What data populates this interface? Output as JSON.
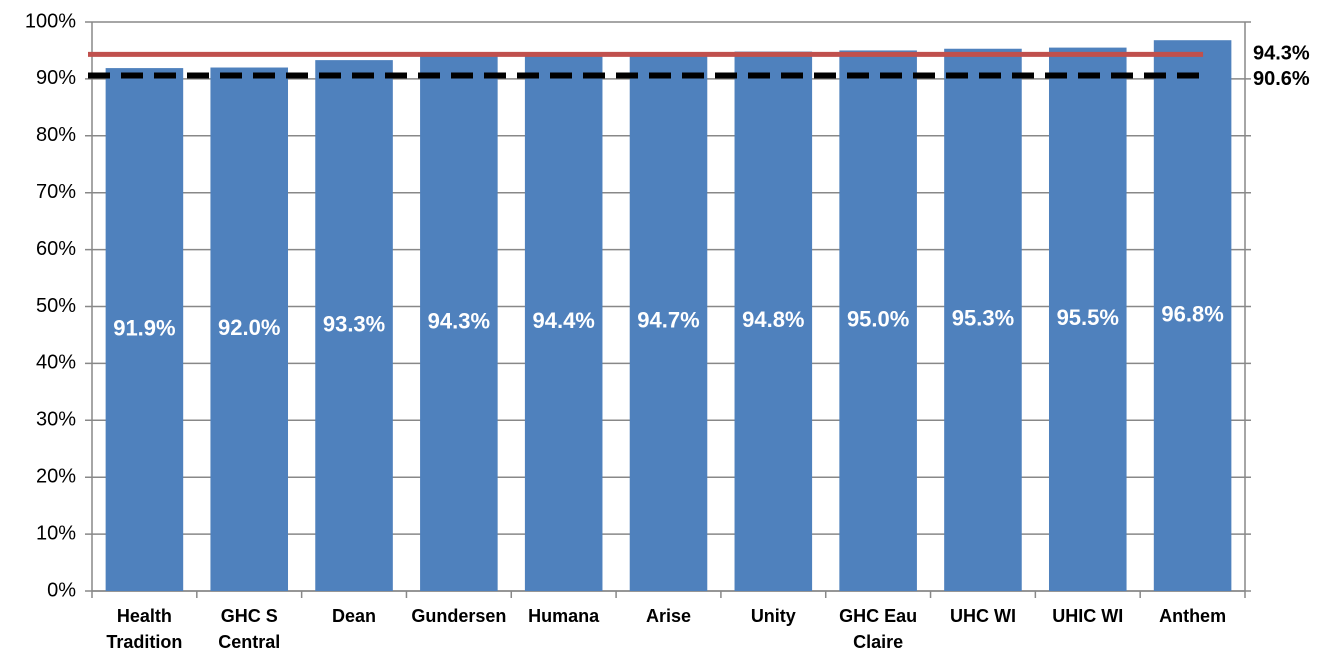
{
  "chart_data": {
    "type": "bar",
    "categories": [
      "Health\nTradition",
      "GHC S\nCentral",
      "Dean",
      "Gundersen",
      "Humana",
      "Arise",
      "Unity",
      "GHC Eau\nClaire",
      "UHC WI",
      "UHIC WI",
      "Anthem"
    ],
    "values": [
      91.9,
      92.0,
      93.3,
      94.3,
      94.4,
      94.7,
      94.8,
      95.0,
      95.3,
      95.5,
      96.8
    ],
    "value_labels": [
      "91.9%",
      "92.0%",
      "93.3%",
      "94.3%",
      "94.4%",
      "94.7%",
      "94.8%",
      "95.0%",
      "95.3%",
      "95.5%",
      "96.8%"
    ],
    "color": "#4f81bd",
    "ylim": [
      0,
      100
    ],
    "yticks": [
      {
        "value": 0,
        "label": "0%"
      },
      {
        "value": 10,
        "label": "10%"
      },
      {
        "value": 20,
        "label": "20%"
      },
      {
        "value": 30,
        "label": "30%"
      },
      {
        "value": 40,
        "label": "40%"
      },
      {
        "value": 50,
        "label": "50%"
      },
      {
        "value": 60,
        "label": "60%"
      },
      {
        "value": 70,
        "label": "70%"
      },
      {
        "value": 80,
        "label": "80%"
      },
      {
        "value": 90,
        "label": "90%"
      },
      {
        "value": 100,
        "label": "100%"
      }
    ],
    "grid": true,
    "reference_lines": [
      {
        "value": 94.3,
        "label": "94.3%",
        "color": "#c0504d",
        "style": "solid"
      },
      {
        "value": 90.6,
        "label": "90.6%",
        "color": "#000000",
        "style": "dashed"
      }
    ]
  }
}
